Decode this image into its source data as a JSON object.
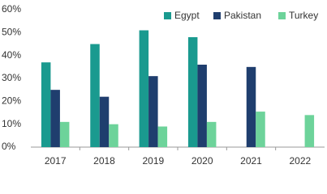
{
  "chart_data": {
    "type": "bar",
    "categories": [
      "2017",
      "2018",
      "2019",
      "2020",
      "2021",
      "2022"
    ],
    "series": [
      {
        "name": "Egypt",
        "color": "#1a9a8f",
        "values": [
          37,
          45,
          51,
          48,
          null,
          null
        ]
      },
      {
        "name": "Pakistan",
        "color": "#1f3e6e",
        "values": [
          25,
          22,
          31,
          36,
          35,
          null
        ]
      },
      {
        "name": "Turkey",
        "color": "#6dd39a",
        "values": [
          11,
          10,
          9,
          11,
          15.5,
          14
        ]
      }
    ],
    "ylim": [
      0,
      60
    ],
    "yticks": [
      {
        "value": 0,
        "label": "0%"
      },
      {
        "value": 10,
        "label": "10%"
      },
      {
        "value": 20,
        "label": "20%"
      },
      {
        "value": 30,
        "label": "30%"
      },
      {
        "value": 40,
        "label": "40%"
      },
      {
        "value": 50,
        "label": "50%"
      },
      {
        "value": 60,
        "label": "60%"
      }
    ],
    "grid": false,
    "legend": "top-right"
  }
}
